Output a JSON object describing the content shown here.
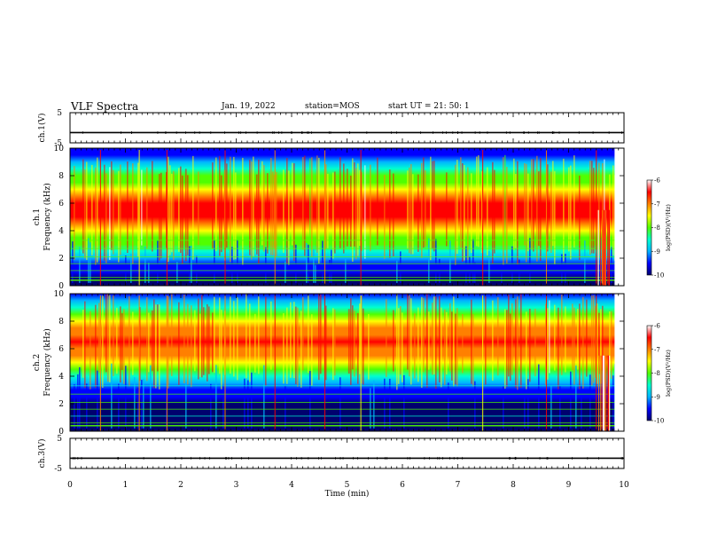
{
  "header": {
    "title": "VLF Spectra",
    "date": "Jan. 19, 2022",
    "station": "station=MOS",
    "start_ut": "start UT =  21: 50: 1"
  },
  "chart_data": [
    {
      "type": "line",
      "panel": "ch1-voltage",
      "ylabel": "ch.1(V)",
      "ylim": [
        -5,
        5
      ],
      "yticks": [
        "5",
        "-5"
      ],
      "xlim": [
        0,
        10
      ],
      "level": -1.6
    },
    {
      "type": "heatmap",
      "panel": "ch1-spectrogram",
      "ylabel": "ch.1\nFrequency (kHz)",
      "ylabel_line1": "ch.1",
      "ylabel_line2": "Frequency (kHz)",
      "ylim": [
        0,
        10
      ],
      "yticks": [
        "0",
        "2",
        "4",
        "6",
        "8",
        "10"
      ],
      "xlim": [
        0,
        10
      ],
      "colorbar": {
        "label": "log(PSD)(V²/Hz)",
        "range": [
          -10,
          -6
        ],
        "ticks": [
          "-6",
          "-7",
          "-8",
          "-9",
          "-10"
        ]
      },
      "band_kHz": [
        1.5,
        9.5
      ]
    },
    {
      "type": "heatmap",
      "panel": "ch2-spectrogram",
      "ylabel_line1": "ch.2",
      "ylabel_line2": "Frequency (kHz)",
      "ylim": [
        0,
        10
      ],
      "yticks": [
        "0",
        "2",
        "4",
        "6",
        "8",
        "10"
      ],
      "xlim": [
        0,
        10
      ],
      "colorbar": {
        "label": "log(PSD)(V²/Hz)",
        "range": [
          -10,
          -6
        ],
        "ticks": [
          "-6",
          "-7",
          "-8",
          "-9",
          "-10"
        ]
      },
      "band_kHz": [
        3,
        10
      ]
    },
    {
      "type": "line",
      "panel": "ch3-voltage",
      "ylabel": "ch.3(V)",
      "ylim": [
        -5,
        5
      ],
      "yticks": [
        "5",
        "-5"
      ],
      "xlim": [
        0,
        10
      ],
      "level": -1.6
    }
  ],
  "xaxis": {
    "label": "Time (min)",
    "ticks": [
      "0",
      "1",
      "2",
      "3",
      "4",
      "5",
      "6",
      "7",
      "8",
      "9",
      "10"
    ]
  },
  "colors": {
    "colormap": [
      "#00006e",
      "#0000ff",
      "#00b4ff",
      "#00ffd0",
      "#50ff00",
      "#ffff00",
      "#ff8000",
      "#ff0000",
      "#ffffff"
    ]
  }
}
